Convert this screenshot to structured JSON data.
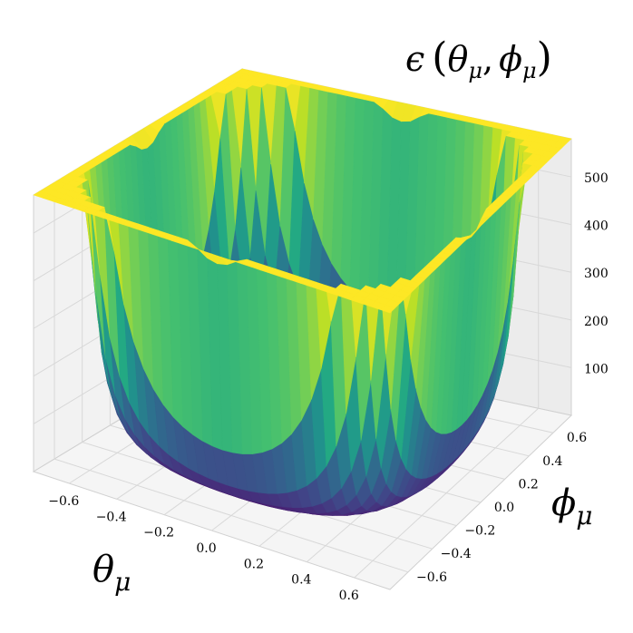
{
  "chart_data": {
    "type": "surface",
    "title": "ϵ (θμ, ϕμ)",
    "title_parts": {
      "epsilon": "ϵ",
      "lparen": "(",
      "theta": "θ",
      "mu1": "μ",
      "comma": ",",
      "phi": "ϕ",
      "mu2": "μ",
      "rparen": ")"
    },
    "x_axis": {
      "label": "θμ",
      "symbol": "θ",
      "subscript": "μ",
      "range": [
        -0.75,
        0.75
      ],
      "ticks": [
        "−0.6",
        "−0.4",
        "−0.2",
        "0.0",
        "0.2",
        "0.4",
        "0.6"
      ]
    },
    "y_axis": {
      "label": "ϕμ",
      "symbol": "ϕ",
      "subscript": "μ",
      "range": [
        -0.75,
        0.75
      ],
      "ticks": [
        "−0.6",
        "−0.4",
        "−0.2",
        "0.0",
        "0.2",
        "0.4",
        "0.6"
      ]
    },
    "z_axis": {
      "label": "",
      "range": [
        0,
        580
      ],
      "ticks": [
        "100",
        "200",
        "300",
        "400",
        "500"
      ]
    },
    "colormap": "viridis",
    "grid": true,
    "corner_peaks_z": 580
  }
}
